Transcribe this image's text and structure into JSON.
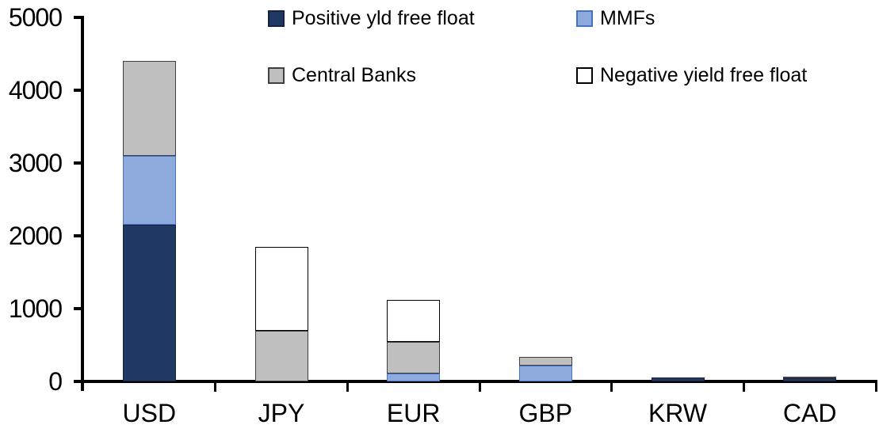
{
  "chart_data": {
    "type": "bar",
    "stacked": true,
    "title": "",
    "xlabel": "",
    "ylabel": "",
    "categories": [
      "USD",
      "JPY",
      "EUR",
      "GBP",
      "KRW",
      "CAD"
    ],
    "series": [
      {
        "name": "Positive yld free float",
        "color": "#1F3864",
        "border_color": "#16233F",
        "values": [
          2150,
          0,
          0,
          0,
          50,
          40
        ]
      },
      {
        "name": "MMFs",
        "color": "#8FAADC",
        "border_color": "#4472C4",
        "values": [
          950,
          0,
          110,
          220,
          0,
          0
        ]
      },
      {
        "name": "Central Banks",
        "color": "#BFBFBF",
        "border_color": "#3F3F3F",
        "values": [
          1300,
          700,
          430,
          120,
          0,
          25
        ]
      },
      {
        "name": "Negative yield free float",
        "color": "#FFFFFF",
        "border_color": "#000000",
        "values": [
          0,
          1150,
          580,
          0,
          0,
          0
        ]
      }
    ],
    "totals": {
      "USD": 4400,
      "JPY": 1850,
      "EUR": 1120,
      "GBP": 340,
      "KRW": 50,
      "CAD": 65
    },
    "ylim": [
      0,
      5000
    ],
    "ytick_step": 1000,
    "ytick_labels": [
      "0",
      "1000",
      "2000",
      "3000",
      "4000",
      "5000"
    ],
    "legend_position": "top",
    "legend_order": [
      "Positive yld free float",
      "MMFs",
      "Central Banks",
      "Negative yield free float"
    ],
    "grid": false,
    "axis_color": "#000000",
    "background_color": "#FFFFFF"
  }
}
